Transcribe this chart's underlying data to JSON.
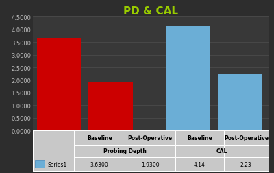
{
  "title": "PD & CAL",
  "title_color": "#99cc00",
  "background_color": "#2d2d2d",
  "plot_bg_color": "#383838",
  "grid_color": "#4a4a4a",
  "bars": [
    {
      "value": 3.63,
      "color": "#cc0000"
    },
    {
      "value": 1.93,
      "color": "#cc0000"
    },
    {
      "value": 4.14,
      "color": "#6baed6"
    },
    {
      "value": 2.23,
      "color": "#6baed6"
    }
  ],
  "x_positions": [
    0.5,
    1.5,
    3.0,
    4.0
  ],
  "xlim": [
    0.0,
    4.55
  ],
  "bar_width": 0.85,
  "ylim": [
    0.0,
    4.5
  ],
  "yticks": [
    0.0,
    0.5,
    1.0,
    1.5,
    2.0,
    2.5,
    3.0,
    3.5,
    4.0,
    4.5
  ],
  "ytick_labels": [
    "0.0000",
    "0.5000",
    "1.0000",
    "1.5000",
    "2.0000",
    "2.5000",
    "3.0000",
    "3.5000",
    "4.0000",
    "4.5000"
  ],
  "tick_color": "#bbbbbb",
  "tick_fontsize": 6,
  "title_fontsize": 11,
  "table_bg": "#c8c8c8",
  "table_border": "#ffffff",
  "row0_labels": [
    "Baseline",
    "Post-Operative",
    "Baseline",
    "Post-Operative"
  ],
  "row1_labels": [
    "Probing Depth",
    "CAL"
  ],
  "row2_values": [
    "3.6300",
    "1.9300",
    "4.14",
    "2.23"
  ],
  "legend_label": "Series1",
  "legend_color": "#6baed6",
  "legend_text_color": "#000000",
  "legend_fontsize": 5.5,
  "row0_fontsize": 5.5,
  "row1_fontsize": 5.5,
  "row2_fontsize": 5.5
}
